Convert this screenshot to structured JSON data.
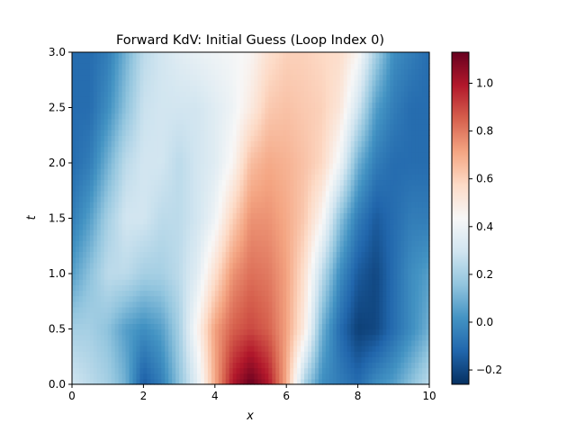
{
  "chart_data": {
    "type": "heatmap",
    "title": "Forward KdV: Initial Guess (Loop Index 0)",
    "xlabel": "x",
    "ylabel": "t",
    "xlim": [
      0,
      10
    ],
    "ylim": [
      0,
      3
    ],
    "xticks": [
      0,
      2,
      4,
      6,
      8,
      10
    ],
    "xtick_labels": [
      "0",
      "2",
      "4",
      "6",
      "8",
      "10"
    ],
    "yticks": [
      0,
      0.5,
      1,
      1.5,
      2,
      2.5,
      3
    ],
    "ytick_labels": [
      "0.0",
      "0.5",
      "1.0",
      "1.5",
      "2.0",
      "2.5",
      "3.0"
    ],
    "colormap": "RdBu_r",
    "colorbar": {
      "range": [
        -0.26,
        1.13
      ],
      "ticks": [
        -0.2,
        0,
        0.2,
        0.4,
        0.6,
        0.8,
        1.0
      ],
      "tick_labels": [
        "−0.2",
        "0.0",
        "0.2",
        "0.4",
        "0.6",
        "0.8",
        "1.0"
      ]
    },
    "t_samples": [
      0,
      0.5,
      1,
      1.5,
      2,
      2.5,
      3
    ],
    "x_samples": [
      0,
      0.5,
      1,
      1.5,
      2,
      2.5,
      3,
      3.5,
      4,
      4.5,
      5,
      5.5,
      6,
      6.5,
      7,
      7.5,
      8,
      8.5,
      9,
      9.5,
      10
    ],
    "values": [
      [
        0.3,
        0.25,
        0.2,
        0.1,
        -0.15,
        -0.05,
        0.15,
        0.35,
        0.7,
        1.0,
        1.13,
        1.0,
        0.7,
        0.2,
        0.0,
        -0.05,
        -0.1,
        0.0,
        0.05,
        0.15,
        0.25
      ],
      [
        0.2,
        0.2,
        0.15,
        0.05,
        0.0,
        0.05,
        0.2,
        0.45,
        0.72,
        0.85,
        0.9,
        0.85,
        0.72,
        0.5,
        0.1,
        -0.1,
        -0.22,
        -0.2,
        -0.1,
        0.0,
        0.1
      ],
      [
        0.05,
        0.15,
        0.25,
        0.25,
        0.2,
        0.2,
        0.25,
        0.35,
        0.55,
        0.75,
        0.82,
        0.8,
        0.72,
        0.55,
        0.25,
        0.0,
        -0.15,
        -0.2,
        -0.1,
        0.0,
        0.05
      ],
      [
        -0.05,
        0.05,
        0.2,
        0.3,
        0.3,
        0.25,
        0.25,
        0.3,
        0.4,
        0.6,
        0.75,
        0.75,
        0.7,
        0.62,
        0.45,
        0.15,
        -0.05,
        -0.15,
        -0.1,
        -0.05,
        -0.05
      ],
      [
        -0.1,
        -0.05,
        0.1,
        0.25,
        0.3,
        0.3,
        0.25,
        0.3,
        0.35,
        0.45,
        0.65,
        0.7,
        0.68,
        0.64,
        0.58,
        0.4,
        0.1,
        -0.05,
        -0.1,
        -0.1,
        -0.1
      ],
      [
        -0.1,
        -0.1,
        0.0,
        0.15,
        0.28,
        0.3,
        0.3,
        0.3,
        0.35,
        0.4,
        0.5,
        0.62,
        0.64,
        0.62,
        0.6,
        0.52,
        0.3,
        0.05,
        -0.05,
        -0.1,
        -0.1
      ],
      [
        -0.1,
        -0.1,
        -0.05,
        0.1,
        0.25,
        0.3,
        0.35,
        0.38,
        0.4,
        0.42,
        0.45,
        0.55,
        0.6,
        0.6,
        0.58,
        0.56,
        0.45,
        0.2,
        0.0,
        -0.05,
        -0.1
      ]
    ]
  }
}
